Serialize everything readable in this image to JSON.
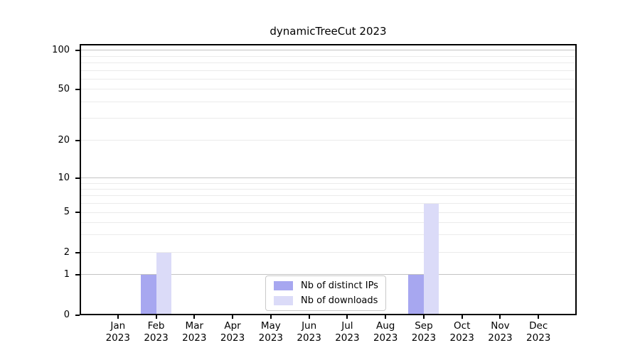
{
  "chart_data": {
    "type": "bar",
    "title": "dynamicTreeCut 2023",
    "categories": [
      "Jan 2023",
      "Feb 2023",
      "Mar 2023",
      "Apr 2023",
      "May 2023",
      "Jun 2023",
      "Jul 2023",
      "Aug 2023",
      "Sep 2023",
      "Oct 2023",
      "Nov 2023",
      "Dec 2023"
    ],
    "series": [
      {
        "name": "Nb of distinct IPs",
        "color": "#a7a7f0",
        "values": [
          0,
          1,
          0,
          0,
          0,
          0,
          0,
          0,
          1,
          0,
          0,
          0
        ]
      },
      {
        "name": "Nb of downloads",
        "color": "#dbdbf8",
        "values": [
          0,
          2,
          0,
          0,
          0,
          0,
          0,
          0,
          6,
          0,
          0,
          0
        ]
      }
    ],
    "xlabel": "",
    "ylabel": "",
    "ylim": [
      0,
      100
    ],
    "y_scale": "symlog",
    "y_ticks": [
      0,
      1,
      2,
      5,
      10,
      20,
      50,
      100
    ],
    "grid": {
      "major_lines": [
        1,
        10,
        100
      ],
      "minor_lines": [
        2,
        3,
        4,
        5,
        6,
        7,
        8,
        9,
        20,
        30,
        40,
        50,
        60,
        70,
        80,
        90
      ]
    },
    "legend_position": "lower center"
  }
}
